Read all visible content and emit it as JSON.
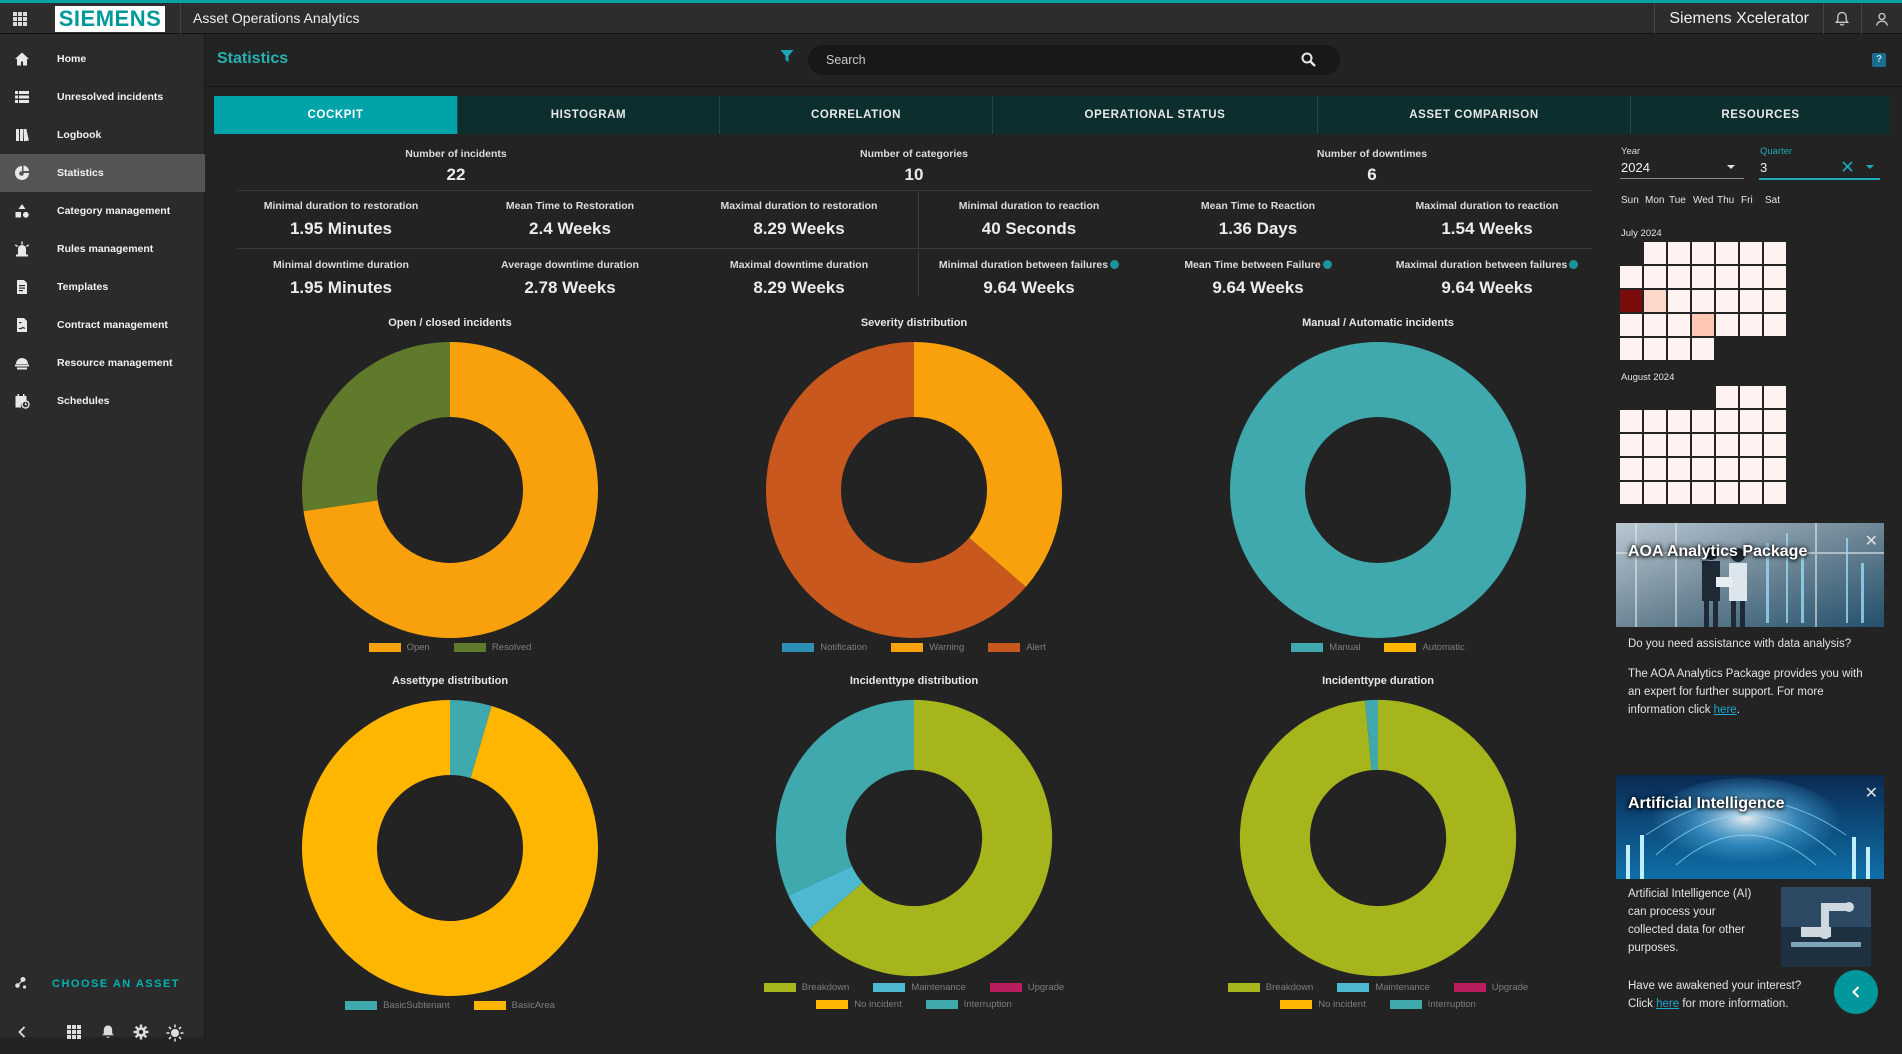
{
  "topbar": {
    "brand": "SIEMENS",
    "app_title": "Asset Operations Analytics",
    "product": "Siemens Xcelerator"
  },
  "sidebar": {
    "items": [
      {
        "label": "Home",
        "icon": "home-icon"
      },
      {
        "label": "Unresolved incidents",
        "icon": "list-icon"
      },
      {
        "label": "Logbook",
        "icon": "book-icon"
      },
      {
        "label": "Statistics",
        "icon": "chart-icon",
        "active": true
      },
      {
        "label": "Category management",
        "icon": "category-icon"
      },
      {
        "label": "Rules management",
        "icon": "rules-icon"
      },
      {
        "label": "Templates",
        "icon": "document-icon"
      },
      {
        "label": "Contract management",
        "icon": "contract-icon"
      },
      {
        "label": "Resource management",
        "icon": "resource-icon"
      },
      {
        "label": "Schedules",
        "icon": "calendar-clock-icon"
      }
    ],
    "choose_asset": "CHOOSE AN ASSET"
  },
  "header": {
    "title": "Statistics",
    "search_placeholder": "Search"
  },
  "tabs": [
    "COCKPIT",
    "HISTOGRAM",
    "CORRELATION",
    "OPERATIONAL STATUS",
    "ASSET COMPARISON",
    "RESOURCES"
  ],
  "stats": {
    "top": [
      {
        "label": "Number of incidents",
        "value": "22"
      },
      {
        "label": "Number of categories",
        "value": "10"
      },
      {
        "label": "Number of downtimes",
        "value": "6"
      }
    ],
    "row1": [
      {
        "label": "Minimal duration to restoration",
        "value": "1.95 Minutes"
      },
      {
        "label": "Mean Time to Restoration",
        "value": "2.4 Weeks"
      },
      {
        "label": "Maximal duration to restoration",
        "value": "8.29 Weeks"
      },
      {
        "label": "Minimal duration to reaction",
        "value": "40 Seconds"
      },
      {
        "label": "Mean Time to Reaction",
        "value": "1.36 Days"
      },
      {
        "label": "Maximal duration to reaction",
        "value": "1.54 Weeks"
      }
    ],
    "row2": [
      {
        "label": "Minimal downtime duration",
        "value": "1.95 Minutes"
      },
      {
        "label": "Average downtime duration",
        "value": "2.78 Weeks"
      },
      {
        "label": "Maximal downtime duration",
        "value": "8.29 Weeks"
      },
      {
        "label": "Minimal duration between failures",
        "value": "9.64 Weeks"
      },
      {
        "label": "Mean Time between Failure",
        "value": "9.64 Weeks"
      },
      {
        "label": "Maximal duration between failures",
        "value": "9.64 Weeks"
      }
    ]
  },
  "colors": {
    "accent": "#00a3a8",
    "orange": "#f9a10d",
    "olive": "#5f7a2a",
    "rust": "#c9581e",
    "teal": "#3fa9ad",
    "amber": "#ffb600",
    "lime": "#a6b51b",
    "cyan": "#4cb9d1",
    "magenta": "#b81d5e",
    "blue": "#2d8fb5"
  },
  "chart_data": [
    {
      "type": "pie",
      "title": "Open / closed incidents",
      "series": [
        {
          "name": "Open",
          "value": 16,
          "color": "#f9a10d"
        },
        {
          "name": "Resolved",
          "value": 6,
          "color": "#5f7a2a"
        }
      ]
    },
    {
      "type": "pie",
      "title": "Severity distribution",
      "series": [
        {
          "name": "Notification",
          "value": 0,
          "color": "#2d8fb5"
        },
        {
          "name": "Warning",
          "value": 8,
          "color": "#f9a10d"
        },
        {
          "name": "Alert",
          "value": 14,
          "color": "#c9581e"
        }
      ]
    },
    {
      "type": "pie",
      "title": "Manual / Automatic incidents",
      "series": [
        {
          "name": "Manual",
          "value": 22,
          "color": "#3fa9ad"
        },
        {
          "name": "Automatic",
          "value": 0,
          "color": "#ffb600"
        }
      ]
    },
    {
      "type": "pie",
      "title": "Assettype distribution",
      "series": [
        {
          "name": "BasicSubtenant",
          "value": 1,
          "color": "#3fa9ad"
        },
        {
          "name": "BasicArea",
          "value": 21,
          "color": "#ffb600"
        }
      ]
    },
    {
      "type": "pie",
      "title": "Incidenttype distribution",
      "series": [
        {
          "name": "Breakdown",
          "value": 14,
          "color": "#a6b51b"
        },
        {
          "name": "Maintenance",
          "value": 1,
          "color": "#4cb9d1"
        },
        {
          "name": "Upgrade",
          "value": 0,
          "color": "#b81d5e"
        },
        {
          "name": "No incident",
          "value": 0,
          "color": "#ffb600"
        },
        {
          "name": "Interruption",
          "value": 7,
          "color": "#3fa9ad"
        }
      ]
    },
    {
      "type": "pie",
      "title": "Incidenttype duration",
      "series": [
        {
          "name": "Breakdown",
          "value": 98.5,
          "color": "#a6b51b"
        },
        {
          "name": "Maintenance",
          "value": 0,
          "color": "#4cb9d1"
        },
        {
          "name": "Upgrade",
          "value": 0,
          "color": "#b81d5e"
        },
        {
          "name": "No incident",
          "value": 0,
          "color": "#ffb600"
        },
        {
          "name": "Interruption",
          "value": 1.5,
          "color": "#3fa9ad"
        }
      ]
    }
  ],
  "right_panel": {
    "year_label": "Year",
    "year_value": "2024",
    "quarter_label": "Quarter",
    "quarter_value": "3",
    "weekdays": [
      "Sun",
      "Mon",
      "Tue",
      "Wed",
      "Thu",
      "Fri",
      "Sat"
    ],
    "months": [
      {
        "name": "July 2024",
        "first_weekday": 1,
        "days": 31,
        "highlight": {
          "14": "#7a0c0c",
          "15": "#ffd8cc",
          "24": "#ffc6b4"
        }
      },
      {
        "name": "August 2024",
        "first_weekday": 4,
        "days": 31,
        "highlight": {}
      }
    ],
    "promo1": {
      "title": "AOA Analytics Package",
      "question": "Do you need assistance with data analysis?",
      "body": "The AOA Analytics Package provides you with an expert for further support. For more information click",
      "link": "here",
      "after": "."
    },
    "promo2": {
      "title": "Artificial Intelligence",
      "body": "Artificial Intelligence (AI) can process your collected data for other purposes.",
      "question": "Have we awakened your interest?",
      "click": "Click",
      "link": "here",
      "after": "for more information."
    }
  }
}
